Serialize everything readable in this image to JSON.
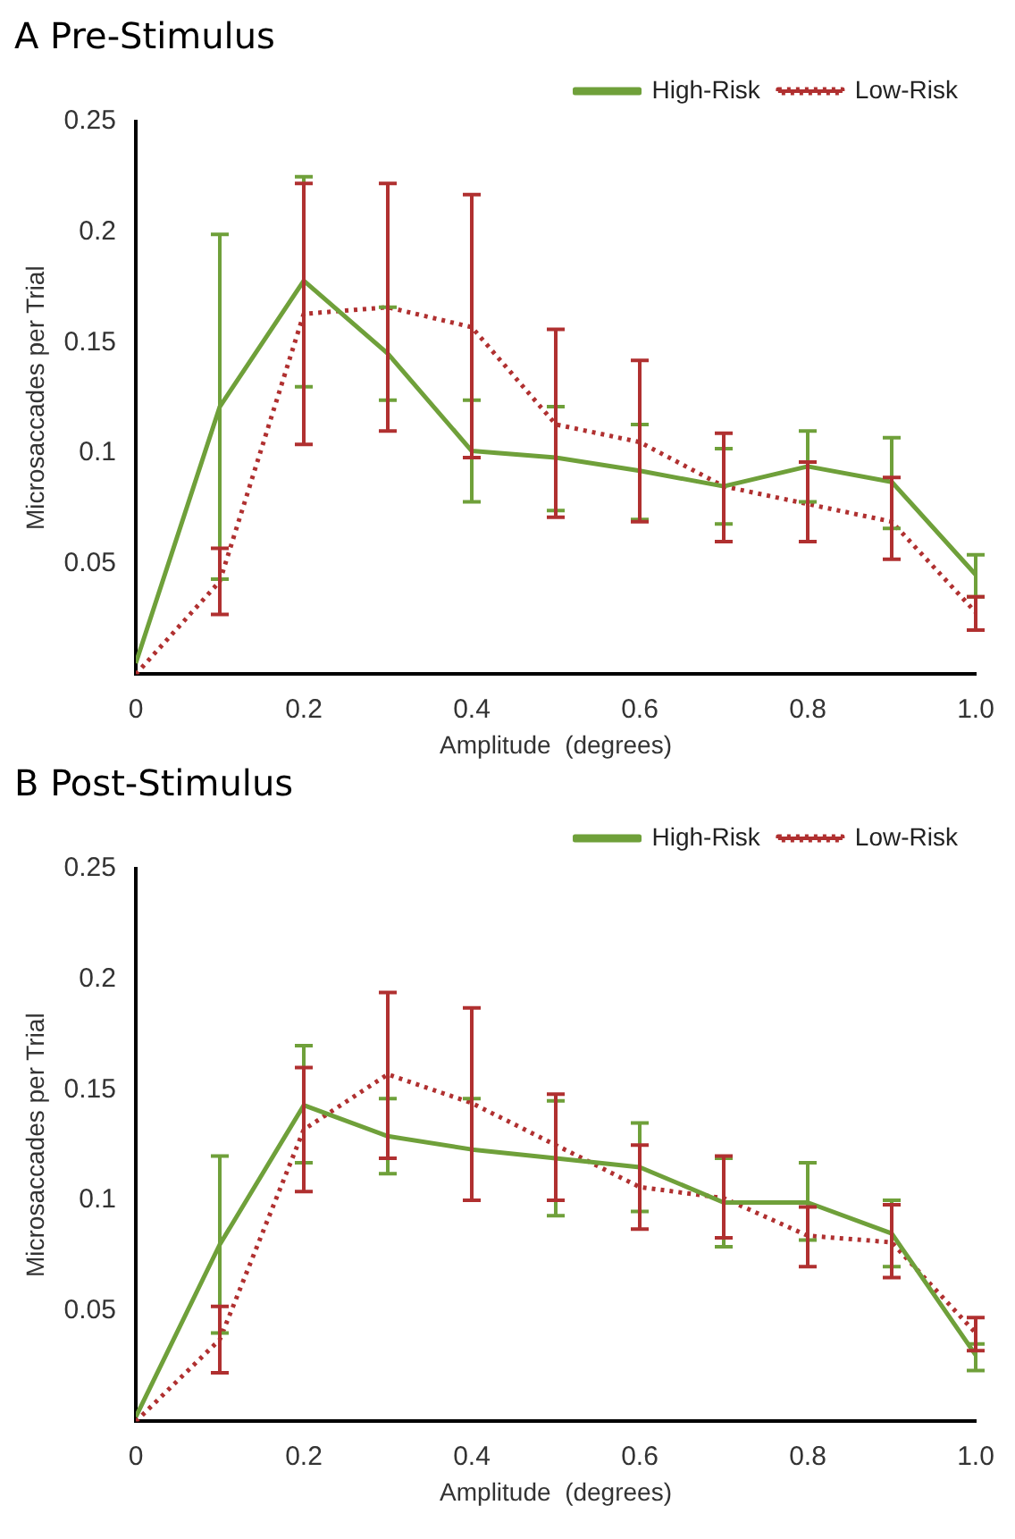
{
  "chart_data": [
    {
      "type": "line",
      "title": "A Pre-Stimulus",
      "xlabel": "Amplitude  (degrees)",
      "ylabel": "Microsaccades per Trial",
      "x": [
        0,
        0.1,
        0.2,
        0.3,
        0.4,
        0.5,
        0.6,
        0.7,
        0.8,
        0.9,
        1.0
      ],
      "xlim": [
        0,
        1
      ],
      "ylim": [
        0,
        0.25
      ],
      "xticks": [
        0,
        0.2,
        0.4,
        0.6,
        0.8,
        {
          "value": 1,
          "label": "1.0"
        }
      ],
      "yticks": [
        0.05,
        0.1,
        0.15,
        0.2,
        0.25
      ],
      "grid": false,
      "legend": "top right",
      "marker": "none",
      "series": [
        {
          "name": "High-Risk",
          "color": "#6fa03a",
          "line_style": "solid",
          "values": [
            0.005,
            0.121,
            0.178,
            0.145,
            0.101,
            0.098,
            0.092,
            0.085,
            0.094,
            0.087,
            0.045
          ],
          "errors": [
            null,
            [
              0.043,
              0.199
            ],
            [
              0.13,
              0.225
            ],
            [
              0.124,
              0.166
            ],
            [
              0.078,
              0.124
            ],
            [
              0.074,
              0.121
            ],
            [
              0.07,
              0.113
            ],
            [
              0.068,
              0.102
            ],
            [
              0.078,
              0.11
            ],
            [
              0.066,
              0.107
            ],
            [
              0.035,
              0.054
            ]
          ]
        },
        {
          "name": "Low-Risk",
          "color": "#b03030",
          "line_style": "dotted",
          "values": [
            0,
            0.042,
            0.163,
            0.166,
            0.157,
            0.113,
            0.105,
            0.085,
            0.077,
            0.069,
            0.028
          ],
          "errors": [
            null,
            [
              0.027,
              0.057
            ],
            [
              0.104,
              0.222
            ],
            [
              0.11,
              0.222
            ],
            [
              0.098,
              0.217
            ],
            [
              0.071,
              0.156
            ],
            [
              0.069,
              0.142
            ],
            [
              0.06,
              0.109
            ],
            [
              0.06,
              0.096
            ],
            [
              0.052,
              0.089
            ],
            [
              0.02,
              0.035
            ]
          ]
        }
      ]
    },
    {
      "type": "line",
      "title": "B Post-Stimulus",
      "xlabel": "Amplitude  (degrees)",
      "ylabel": "Microsaccades per Trial",
      "x": [
        0,
        0.1,
        0.2,
        0.3,
        0.4,
        0.5,
        0.6,
        0.7,
        0.8,
        0.9,
        1.0
      ],
      "xlim": [
        0,
        1
      ],
      "ylim": [
        0,
        0.25
      ],
      "xticks": [
        0,
        0.2,
        0.4,
        0.6,
        0.8,
        {
          "value": 1,
          "label": "1.0"
        }
      ],
      "yticks": [
        0.05,
        0.1,
        0.15,
        0.2,
        0.25
      ],
      "grid": false,
      "legend": "top right",
      "marker": "none",
      "series": [
        {
          "name": "High-Risk",
          "color": "#6fa03a",
          "line_style": "solid",
          "values": [
            0.002,
            0.08,
            0.143,
            0.129,
            0.123,
            0.119,
            0.115,
            0.099,
            0.099,
            0.085,
            0.03
          ],
          "errors": [
            null,
            [
              0.04,
              0.12
            ],
            [
              0.117,
              0.17
            ],
            [
              0.112,
              0.146
            ],
            [
              0.1,
              0.146
            ],
            [
              0.093,
              0.145
            ],
            [
              0.095,
              0.135
            ],
            [
              0.079,
              0.119
            ],
            [
              0.082,
              0.117
            ],
            [
              0.07,
              0.1
            ],
            [
              0.023,
              0.035
            ]
          ]
        },
        {
          "name": "Low-Risk",
          "color": "#b03030",
          "line_style": "dotted",
          "values": [
            0,
            0.037,
            0.132,
            0.157,
            0.144,
            0.125,
            0.106,
            0.101,
            0.084,
            0.081,
            0.04
          ],
          "errors": [
            null,
            [
              0.022,
              0.052
            ],
            [
              0.104,
              0.16
            ],
            [
              0.119,
              0.194
            ],
            [
              0.1,
              0.187
            ],
            [
              0.1,
              0.148
            ],
            [
              0.087,
              0.125
            ],
            [
              0.083,
              0.12
            ],
            [
              0.07,
              0.097
            ],
            [
              0.065,
              0.098
            ],
            [
              0.032,
              0.047
            ]
          ]
        }
      ]
    }
  ]
}
